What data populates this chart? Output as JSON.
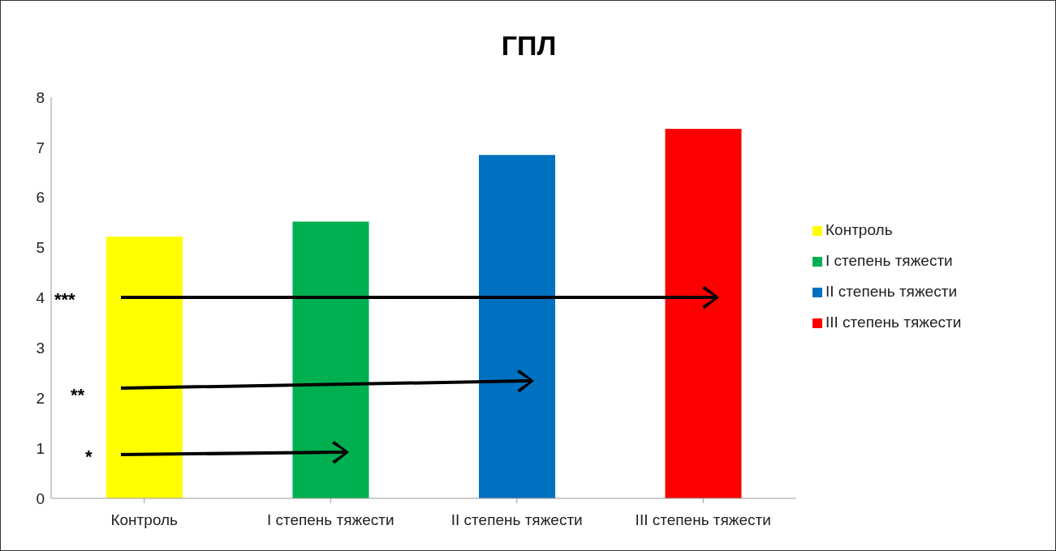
{
  "chart_data": {
    "type": "bar",
    "title": "ГПЛ",
    "categories": [
      "Контроль",
      "I степень тяжести",
      "II степень тяжести",
      "III степень тяжести"
    ],
    "series": [
      {
        "name": "Контроль",
        "color": "#ffff00",
        "values": [
          5.22,
          null,
          null,
          null
        ]
      },
      {
        "name": "I степень тяжести",
        "color": "#00b050",
        "values": [
          null,
          5.52,
          null,
          null
        ]
      },
      {
        "name": "II степень тяжести",
        "color": "#0070c0",
        "values": [
          null,
          null,
          6.85,
          null
        ]
      },
      {
        "name": "III степень тяжести",
        "color": "#ff0000",
        "values": [
          null,
          null,
          null,
          7.37
        ]
      }
    ],
    "ylim": [
      0,
      8
    ],
    "yticks": [
      0,
      1,
      2,
      3,
      4,
      5,
      6,
      7,
      8
    ],
    "legend": "right",
    "annotations": [
      "***",
      "**",
      "*"
    ]
  }
}
